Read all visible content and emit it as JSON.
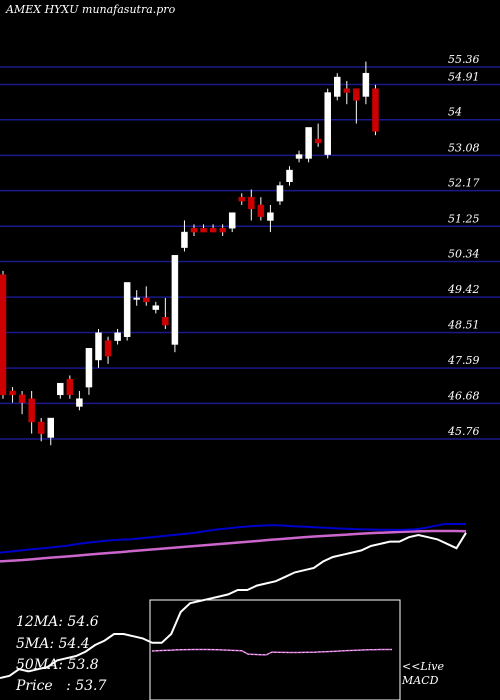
{
  "header": {
    "title": "AMEX  HYXU munafasutra.pro"
  },
  "stats": [
    {
      "label": "12MA",
      "value": ": 54.6"
    },
    {
      "label": "5MA",
      "value": ": 54.4"
    },
    {
      "label": "50MA",
      "value": ": 53.8"
    },
    {
      "label": "Price",
      "value": "   : 53.7"
    }
  ],
  "macd_label": {
    "line1": "<<Live",
    "line2": "MACD"
  },
  "colors": {
    "background": "#000000",
    "grid": "#1a1a8c",
    "up": "#ffffff",
    "down": "#cc0000",
    "ma_short": "#0000cc",
    "ma_long": "#cc66cc",
    "price_line": "#ffffff"
  },
  "chart_data": {
    "type": "candlestick",
    "title": "",
    "xlabel": "",
    "ylabel": "",
    "ylim": [
      45.2,
      55.8
    ],
    "yticks": [
      55.36,
      54.91,
      54,
      53.08,
      52.17,
      51.25,
      50.34,
      49.42,
      48.51,
      47.59,
      46.68,
      45.76
    ],
    "grid": true,
    "candles": [
      {
        "o": 50.0,
        "h": 50.1,
        "c": 46.9,
        "l": 46.8
      },
      {
        "o": 47.0,
        "h": 47.1,
        "c": 46.9,
        "l": 46.7
      },
      {
        "o": 46.9,
        "h": 47.0,
        "c": 46.7,
        "l": 46.4
      },
      {
        "o": 46.8,
        "h": 47.0,
        "c": 46.2,
        "l": 45.9
      },
      {
        "o": 46.2,
        "h": 46.3,
        "c": 45.9,
        "l": 45.7
      },
      {
        "o": 45.8,
        "h": 46.3,
        "c": 46.3,
        "l": 45.6
      },
      {
        "o": 46.9,
        "h": 47.2,
        "c": 47.2,
        "l": 46.8
      },
      {
        "o": 47.3,
        "h": 47.4,
        "c": 46.9,
        "l": 46.8
      },
      {
        "o": 46.6,
        "h": 47.0,
        "c": 46.8,
        "l": 46.5
      },
      {
        "o": 47.1,
        "h": 48.1,
        "c": 48.1,
        "l": 46.9
      },
      {
        "o": 47.8,
        "h": 48.6,
        "c": 48.5,
        "l": 47.6
      },
      {
        "o": 48.3,
        "h": 48.4,
        "c": 47.9,
        "l": 47.7
      },
      {
        "o": 48.3,
        "h": 48.6,
        "c": 48.5,
        "l": 48.2
      },
      {
        "o": 48.4,
        "h": 49.8,
        "c": 49.8,
        "l": 48.3
      },
      {
        "o": 49.4,
        "h": 49.6,
        "c": 49.4,
        "l": 49.2
      },
      {
        "o": 49.4,
        "h": 49.7,
        "c": 49.3,
        "l": 49.2
      },
      {
        "o": 49.1,
        "h": 49.3,
        "c": 49.2,
        "l": 49.0
      },
      {
        "o": 48.9,
        "h": 49.4,
        "c": 48.7,
        "l": 48.6
      },
      {
        "o": 48.2,
        "h": 50.5,
        "c": 50.5,
        "l": 48.0
      },
      {
        "o": 50.7,
        "h": 51.4,
        "c": 51.1,
        "l": 50.6
      },
      {
        "o": 51.2,
        "h": 51.3,
        "c": 51.1,
        "l": 51.0
      },
      {
        "o": 51.2,
        "h": 51.3,
        "c": 51.1,
        "l": 51.1
      },
      {
        "o": 51.2,
        "h": 51.3,
        "c": 51.1,
        "l": 51.1
      },
      {
        "o": 51.2,
        "h": 51.3,
        "c": 51.1,
        "l": 51.0
      },
      {
        "o": 51.2,
        "h": 51.6,
        "c": 51.6,
        "l": 51.1
      },
      {
        "o": 52.0,
        "h": 52.1,
        "c": 51.9,
        "l": 51.8
      },
      {
        "o": 52.0,
        "h": 52.2,
        "c": 51.7,
        "l": 51.4
      },
      {
        "o": 51.8,
        "h": 52.0,
        "c": 51.5,
        "l": 51.4
      },
      {
        "o": 51.4,
        "h": 51.8,
        "c": 51.6,
        "l": 51.1
      },
      {
        "o": 51.9,
        "h": 52.4,
        "c": 52.3,
        "l": 51.8
      },
      {
        "o": 52.4,
        "h": 52.8,
        "c": 52.7,
        "l": 52.3
      },
      {
        "o": 53.0,
        "h": 53.2,
        "c": 53.1,
        "l": 52.9
      },
      {
        "o": 53.0,
        "h": 53.8,
        "c": 53.8,
        "l": 52.9
      },
      {
        "o": 53.5,
        "h": 53.9,
        "c": 53.4,
        "l": 53.3
      },
      {
        "o": 53.1,
        "h": 54.8,
        "c": 54.7,
        "l": 53.0
      },
      {
        "o": 54.6,
        "h": 55.2,
        "c": 55.1,
        "l": 54.5
      },
      {
        "o": 54.8,
        "h": 55.0,
        "c": 54.7,
        "l": 54.4
      },
      {
        "o": 54.8,
        "h": 54.8,
        "c": 54.5,
        "l": 53.9
      },
      {
        "o": 54.6,
        "h": 55.5,
        "c": 55.2,
        "l": 54.4
      },
      {
        "o": 54.8,
        "h": 54.9,
        "c": 53.7,
        "l": 53.6
      }
    ],
    "indicator": {
      "price_line": [
        10,
        11,
        14,
        13,
        14,
        15,
        18,
        19,
        20,
        22,
        25,
        27,
        30,
        30,
        29,
        28,
        26,
        26,
        30,
        40,
        44,
        45,
        46,
        47,
        48,
        50,
        50,
        52,
        53,
        54,
        56,
        58,
        59,
        60,
        63,
        65,
        66,
        67,
        68,
        70,
        71,
        72,
        72,
        74,
        75,
        74,
        73,
        71,
        69,
        76
      ],
      "ma_short": [
        67,
        67.5,
        68,
        68.5,
        69,
        69.5,
        70,
        70.8,
        71.5,
        72,
        72.5,
        72.8,
        73,
        73.5,
        74,
        74.5,
        75,
        75.5,
        76,
        76.8,
        77.5,
        78,
        78.5,
        79,
        79.2,
        79.5,
        79.3,
        79,
        78.8,
        78.5,
        78.3,
        78,
        77.8,
        77.6,
        77.5,
        77.4,
        77.3,
        77.3,
        77.5,
        78,
        79,
        80,
        80,
        80
      ],
      "ma_long": [
        63,
        63.3,
        63.6,
        64,
        64.4,
        64.8,
        65.2,
        65.6,
        66,
        66.4,
        66.8,
        67.2,
        67.6,
        68,
        68.4,
        68.8,
        69.2,
        69.6,
        70,
        70.4,
        70.8,
        71.2,
        71.6,
        72,
        72.4,
        72.8,
        73.2,
        73.6,
        74,
        74.3,
        74.6,
        74.9,
        75.2,
        75.5,
        75.8,
        76,
        76.2,
        76.4,
        76.6,
        76.7,
        76.8,
        76.8,
        76.8,
        76.7
      ]
    }
  }
}
